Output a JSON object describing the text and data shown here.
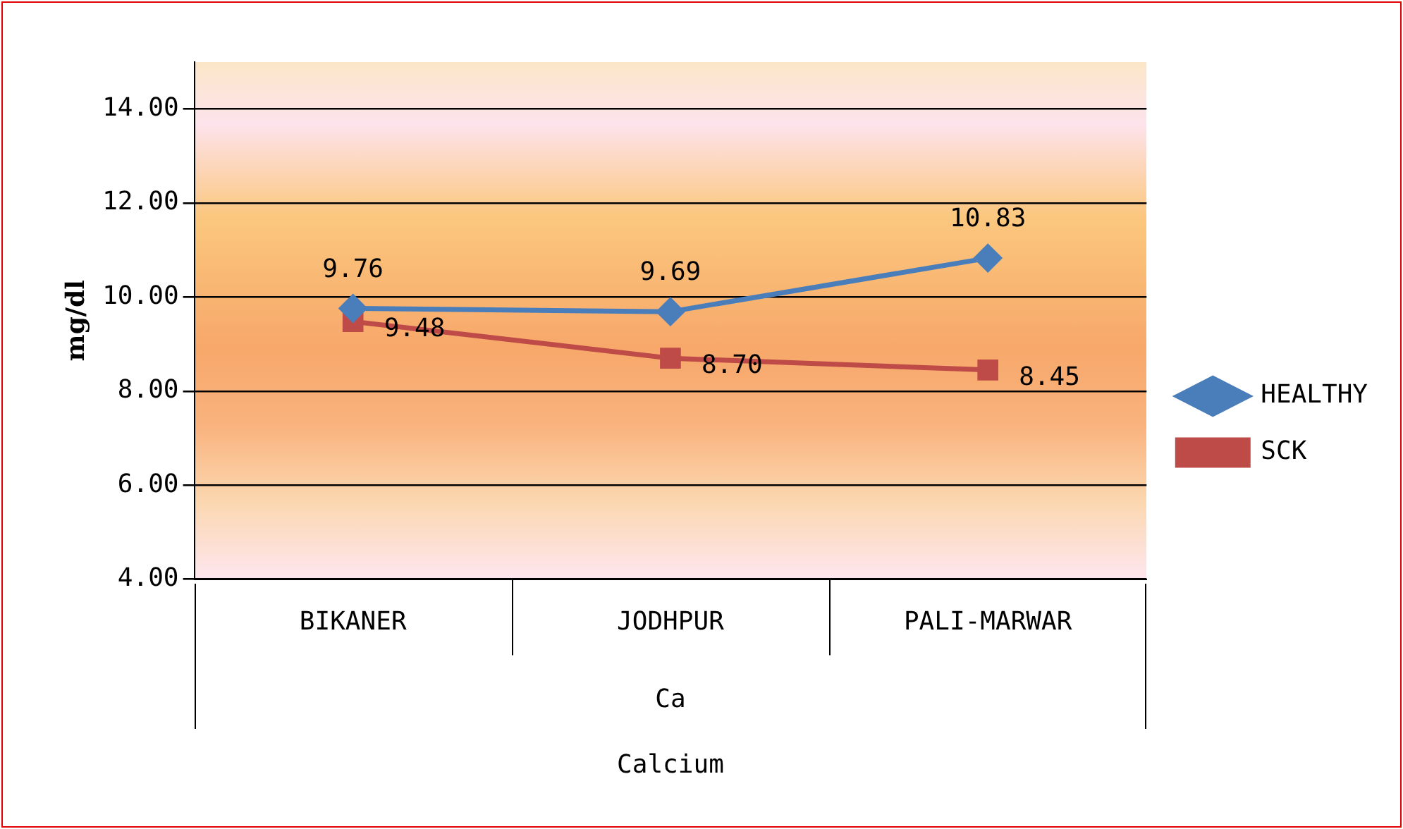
{
  "chart_data": {
    "type": "line",
    "ylabel": "mg/dl",
    "xlabel": "Calcium",
    "annotations": [
      "Ca"
    ],
    "categories": [
      "BIKANER",
      "JODHPUR",
      "PALI-MARWAR"
    ],
    "series": [
      {
        "name": "HEALTHY",
        "color": "#4a7ebb",
        "marker": "diamond",
        "values": [
          9.76,
          9.69,
          10.83
        ],
        "value_labels": [
          "9.76",
          "9.69",
          "10.83"
        ]
      },
      {
        "name": "SCK",
        "color": "#be4b48",
        "marker": "square",
        "values": [
          9.48,
          8.7,
          8.45
        ],
        "value_labels": [
          "9.48",
          "8.70",
          "8.45"
        ]
      }
    ],
    "ylim": [
      4,
      15
    ],
    "yticks": [
      {
        "value": 4,
        "label": "4.00"
      },
      {
        "value": 6,
        "label": "6.00"
      },
      {
        "value": 8,
        "label": "8.00"
      },
      {
        "value": 10,
        "label": "10.00"
      },
      {
        "value": 12,
        "label": "12.00"
      },
      {
        "value": 14,
        "label": "14.00"
      }
    ],
    "grid": "y",
    "legend": "right",
    "line_style": "solid"
  }
}
